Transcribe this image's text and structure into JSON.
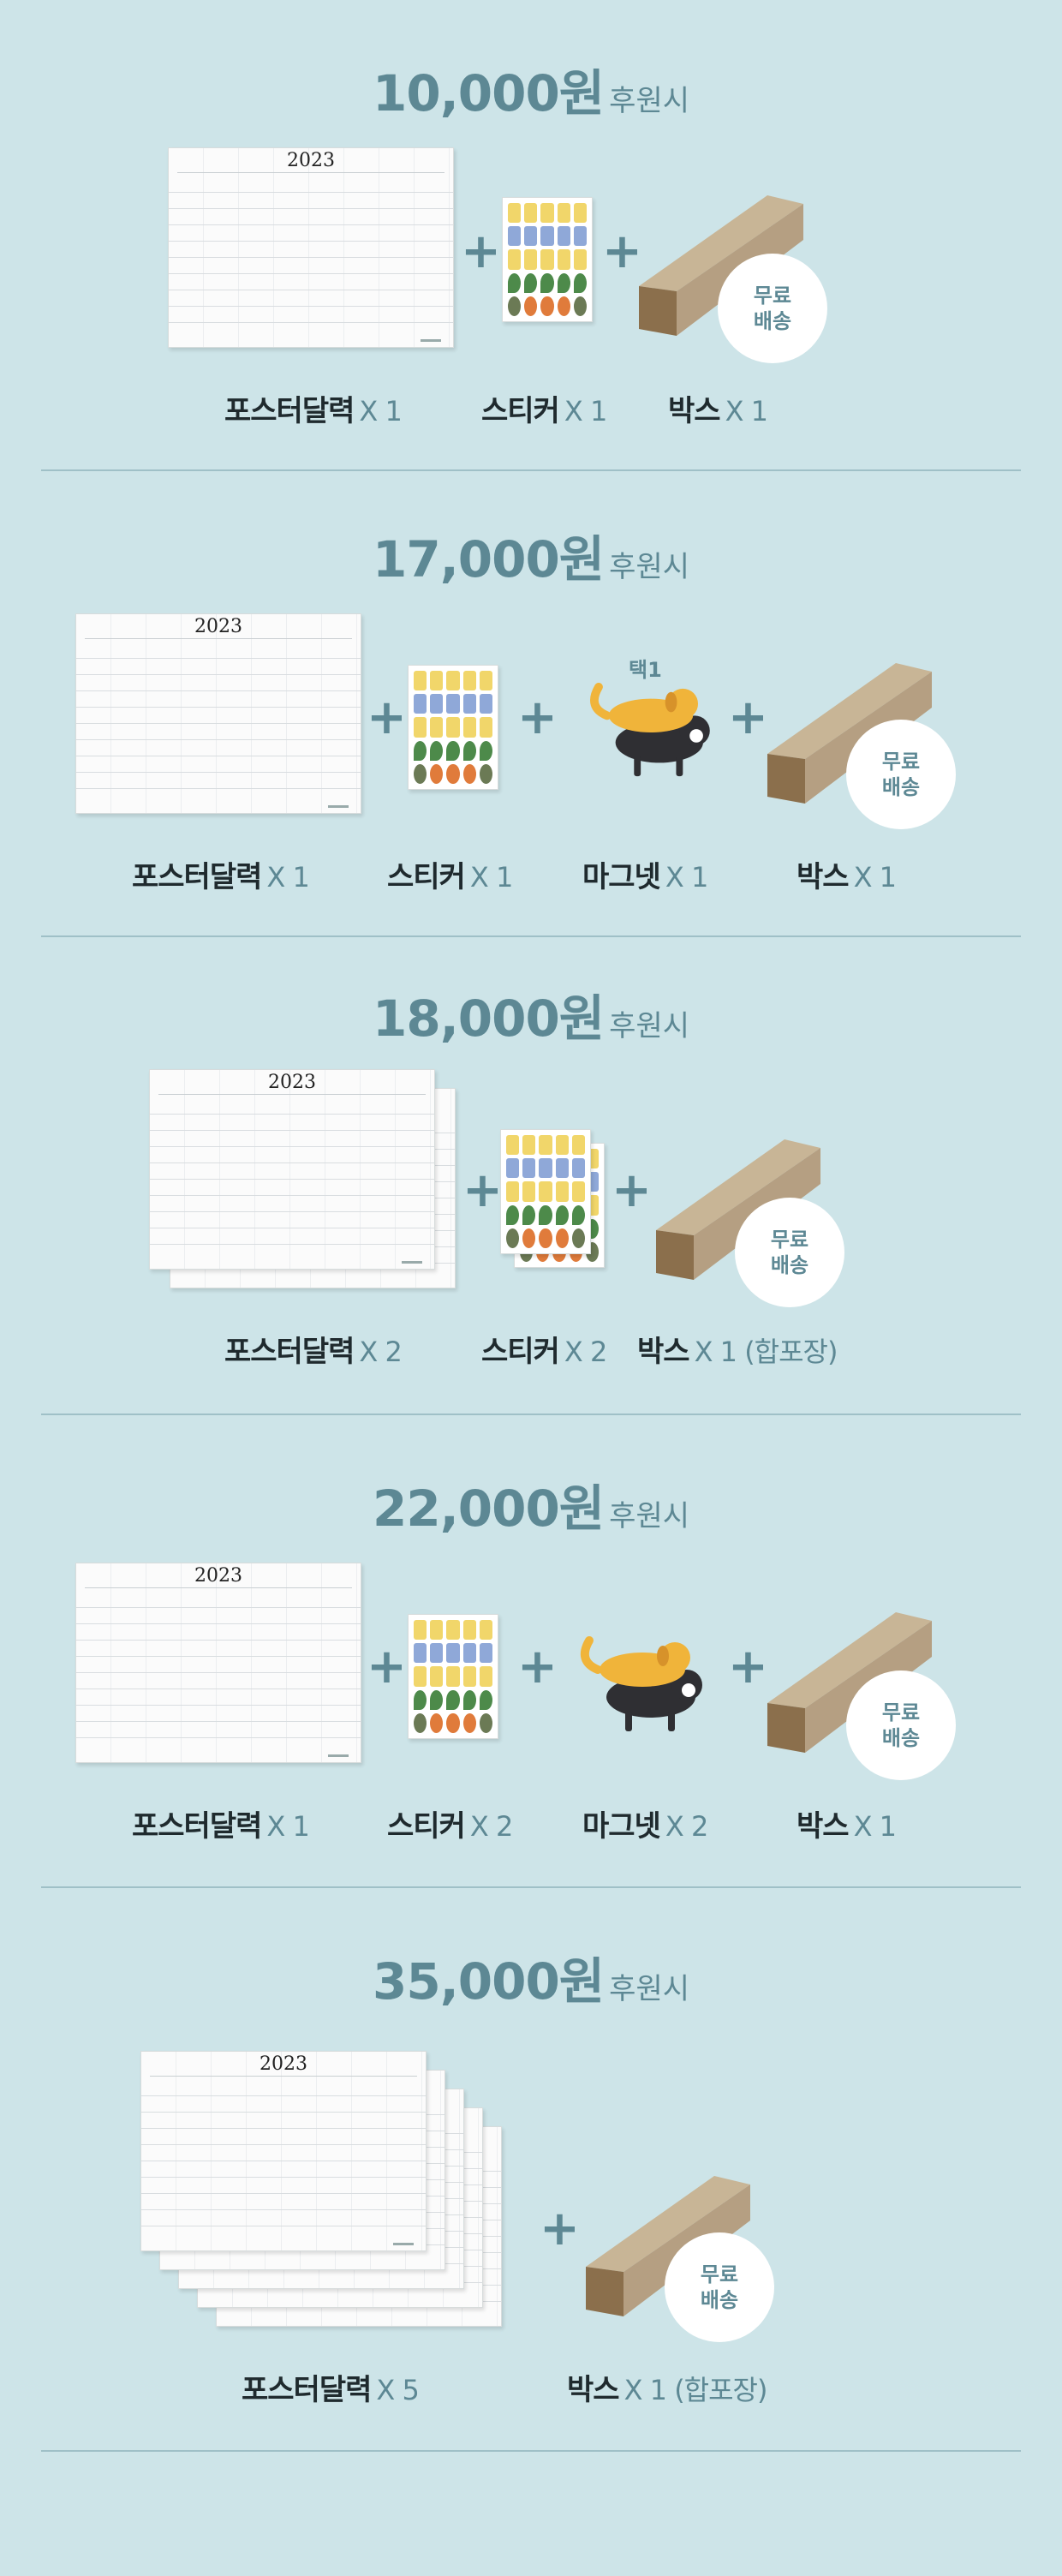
{
  "colors": {
    "background": "#cde4e8",
    "accent": "#5d8894",
    "box_tan": "#b59f82",
    "divider": "#9fc0c7"
  },
  "common": {
    "price_suffix": "후원시",
    "free_shipping_1": "무료",
    "free_shipping_2": "배송",
    "poster_year": "2023"
  },
  "tiers": [
    {
      "price": "10,000원",
      "items": [
        {
          "name": "포스터달력",
          "qty": "X 1"
        },
        {
          "name": "스티커",
          "qty": "X 1"
        },
        {
          "name": "박스",
          "qty": "X 1"
        }
      ]
    },
    {
      "price": "17,000원",
      "magnet_tag": "택1",
      "items": [
        {
          "name": "포스터달력",
          "qty": "X 1"
        },
        {
          "name": "스티커",
          "qty": "X 1"
        },
        {
          "name": "마그넷",
          "qty": "X 1"
        },
        {
          "name": "박스",
          "qty": "X 1"
        }
      ]
    },
    {
      "price": "18,000원",
      "items": [
        {
          "name": "포스터달력",
          "qty": "X 2"
        },
        {
          "name": "스티커",
          "qty": "X 2"
        },
        {
          "name": "박스",
          "qty": "X 1 (합포장)"
        }
      ]
    },
    {
      "price": "22,000원",
      "items": [
        {
          "name": "포스터달력",
          "qty": "X 1"
        },
        {
          "name": "스티커",
          "qty": "X 2"
        },
        {
          "name": "마그넷",
          "qty": "X 2"
        },
        {
          "name": "박스",
          "qty": "X 1"
        }
      ]
    },
    {
      "price": "35,000원",
      "items": [
        {
          "name": "포스터달력",
          "qty": "X 5"
        },
        {
          "name": "박스",
          "qty": "X 1 (합포장)"
        }
      ]
    }
  ]
}
